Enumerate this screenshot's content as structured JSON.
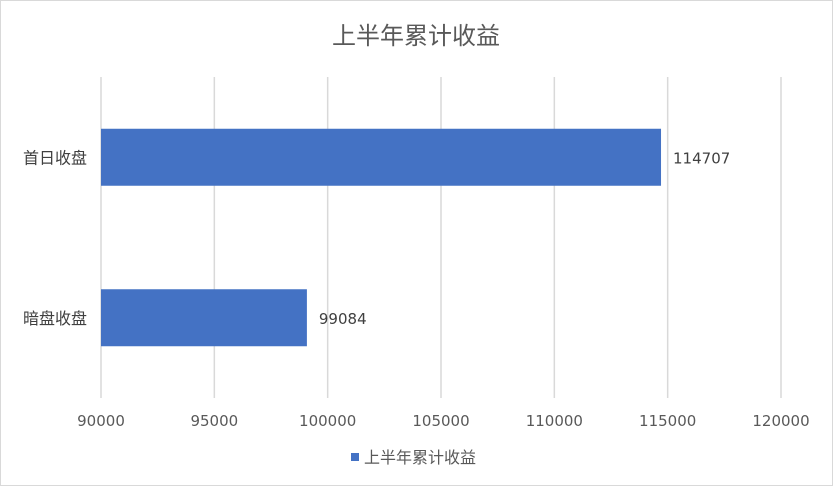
{
  "chart_data": {
    "type": "bar",
    "orientation": "horizontal",
    "title": "上半年累计收益",
    "categories": [
      "首日收盘",
      "暗盘收盘"
    ],
    "series": [
      {
        "name": "上半年累计收益",
        "values": [
          114707,
          99084
        ],
        "color": "#4472c4"
      }
    ],
    "data_labels": [
      "114707",
      "99084"
    ],
    "xlim": [
      90000,
      120000
    ],
    "xticks": [
      90000,
      95000,
      100000,
      105000,
      110000,
      115000,
      120000
    ],
    "xtick_labels": [
      "90000",
      "95000",
      "100000",
      "105000",
      "110000",
      "115000",
      "120000"
    ],
    "grid": "vertical",
    "legend": "bottom"
  }
}
